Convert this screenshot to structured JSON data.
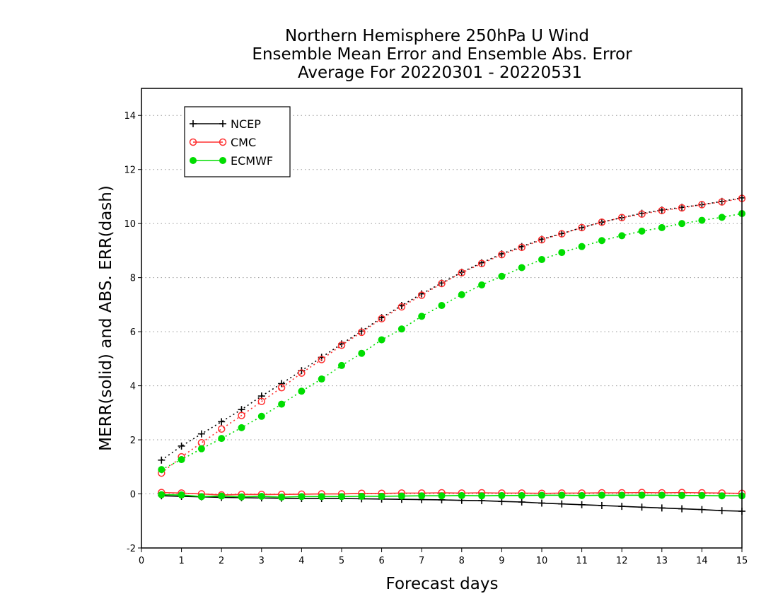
{
  "chart_data": {
    "type": "line",
    "title": [
      "Northern Hemisphere 250hPa U Wind",
      "Ensemble Mean Error and Ensemble Abs. Error",
      "Average For 20220301 - 20220531"
    ],
    "xlabel": "Forecast days",
    "ylabel": "MERR(solid) and ABS. ERR(dash)",
    "xlim": [
      0,
      15
    ],
    "ylim": [
      -2,
      15
    ],
    "xticks": [
      0,
      1,
      2,
      3,
      4,
      5,
      6,
      7,
      8,
      9,
      10,
      11,
      12,
      13,
      14,
      15
    ],
    "yticks": [
      -2,
      0,
      2,
      4,
      6,
      8,
      10,
      12,
      14
    ],
    "grid": "horizontal dotted",
    "legend_position": "top-left",
    "x": [
      0.5,
      1,
      1.5,
      2,
      2.5,
      3,
      3.5,
      4,
      4.5,
      5,
      5.5,
      6,
      6.5,
      7,
      7.5,
      8,
      8.5,
      9,
      9.5,
      10,
      10.5,
      11,
      11.5,
      12,
      12.5,
      13,
      13.5,
      14,
      14.5,
      15
    ],
    "series": [
      {
        "name": "NCEP",
        "color": "#000000",
        "marker": "plus",
        "merr": [
          -0.07,
          -0.09,
          -0.11,
          -0.13,
          -0.14,
          -0.15,
          -0.16,
          -0.17,
          -0.17,
          -0.17,
          -0.18,
          -0.19,
          -0.2,
          -0.21,
          -0.22,
          -0.24,
          -0.25,
          -0.28,
          -0.3,
          -0.34,
          -0.37,
          -0.4,
          -0.43,
          -0.46,
          -0.49,
          -0.52,
          -0.55,
          -0.58,
          -0.62,
          -0.64
        ],
        "abs_err": [
          1.25,
          1.77,
          2.22,
          2.67,
          3.12,
          3.62,
          4.08,
          4.56,
          5.05,
          5.55,
          6.02,
          6.52,
          6.97,
          7.4,
          7.8,
          8.2,
          8.55,
          8.88,
          9.15,
          9.42,
          9.63,
          9.85,
          10.05,
          10.22,
          10.38,
          10.5,
          10.6,
          10.7,
          10.82,
          10.95
        ]
      },
      {
        "name": "CMC",
        "color": "#ff3030",
        "marker": "circle-open",
        "merr": [
          0.05,
          0.03,
          0.0,
          -0.04,
          -0.02,
          -0.02,
          -0.02,
          -0.01,
          0.0,
          0.0,
          0.02,
          0.02,
          0.03,
          0.03,
          0.04,
          0.03,
          0.04,
          0.03,
          0.03,
          0.02,
          0.03,
          0.03,
          0.04,
          0.04,
          0.05,
          0.04,
          0.05,
          0.04,
          0.03,
          0.02
        ],
        "abs_err": [
          0.77,
          1.37,
          1.89,
          2.4,
          2.9,
          3.42,
          3.93,
          4.47,
          4.97,
          5.5,
          5.98,
          6.48,
          6.92,
          7.35,
          7.78,
          8.18,
          8.52,
          8.85,
          9.12,
          9.4,
          9.62,
          9.85,
          10.05,
          10.22,
          10.35,
          10.48,
          10.58,
          10.7,
          10.8,
          10.93
        ]
      },
      {
        "name": "ECMWF",
        "color": "#00dd00",
        "marker": "circle-filled",
        "merr": [
          -0.03,
          -0.04,
          -0.1,
          -0.08,
          -0.11,
          -0.09,
          -0.12,
          -0.1,
          -0.1,
          -0.1,
          -0.09,
          -0.09,
          -0.08,
          -0.07,
          -0.07,
          -0.06,
          -0.07,
          -0.06,
          -0.06,
          -0.05,
          -0.05,
          -0.06,
          -0.05,
          -0.05,
          -0.05,
          -0.05,
          -0.06,
          -0.06,
          -0.07,
          -0.07
        ],
        "abs_err": [
          0.9,
          1.27,
          1.67,
          2.05,
          2.45,
          2.87,
          3.32,
          3.8,
          4.25,
          4.75,
          5.2,
          5.7,
          6.1,
          6.57,
          6.97,
          7.37,
          7.73,
          8.05,
          8.37,
          8.67,
          8.93,
          9.15,
          9.37,
          9.55,
          9.72,
          9.85,
          10.0,
          10.12,
          10.23,
          10.37
        ]
      }
    ]
  }
}
